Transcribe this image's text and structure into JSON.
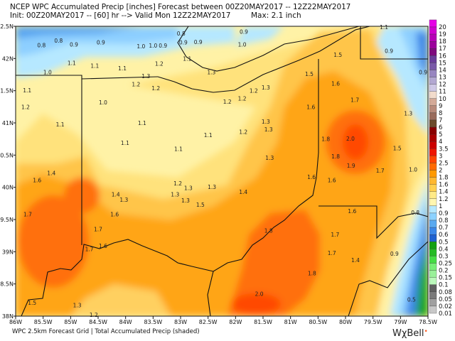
{
  "header": {
    "line1": "NCEP WPC Accumulated Precip [inches] Forecast between 00Z20MAY2017 -- 12Z22MAY2017",
    "line2": "Init: 00Z20MAY2017 -- [60] hr --> Valid Mon 12Z22MAY2017",
    "max": "Max: 2.1 inch"
  },
  "footer": {
    "caption": "WPC 2.5km Forecast Grid | Total Accumulated Precip (shaded)",
    "logo": "WχBell"
  },
  "axes": {
    "lat_labels": [
      "42.5N",
      "42N",
      "41.5N",
      "41N",
      "40.5N",
      "40N",
      "39.5N",
      "39N",
      "38.5N",
      "38N"
    ],
    "lon_labels": [
      "86W",
      "85.5W",
      "85W",
      "84.5W",
      "84W",
      "83.5W",
      "83W",
      "82.5W",
      "82W",
      "81.5W",
      "81W",
      "80.5W",
      "80W",
      "79.5W",
      "79W",
      "78.5W"
    ],
    "lat_range": [
      38,
      42.5
    ],
    "lon_range": [
      -86,
      -78.5
    ]
  },
  "colorbar": [
    {
      "label": "20",
      "color": "#e600e6"
    },
    {
      "label": "19",
      "color": "#cf00cf"
    },
    {
      "label": "18",
      "color": "#b600b6"
    },
    {
      "label": "17",
      "color": "#9c009c"
    },
    {
      "label": "16",
      "color": "#7e0a7e"
    },
    {
      "label": "15",
      "color": "#6a3d9a"
    },
    {
      "label": "14",
      "color": "#7a5aa8"
    },
    {
      "label": "13",
      "color": "#9886c0"
    },
    {
      "label": "12",
      "color": "#b3a8d2"
    },
    {
      "label": "11",
      "color": "#cfc8e6"
    },
    {
      "label": "10",
      "color": "#f2dccc"
    },
    {
      "label": "9",
      "color": "#d4aa98"
    },
    {
      "label": "8",
      "color": "#b88a7a"
    },
    {
      "label": "7",
      "color": "#9a6c5c"
    },
    {
      "label": "6",
      "color": "#6c4c2c"
    },
    {
      "label": "5",
      "color": "#8a0000"
    },
    {
      "label": "4",
      "color": "#aa0000"
    },
    {
      "label": "3.5",
      "color": "#cc0000"
    },
    {
      "label": "3",
      "color": "#ee1500"
    },
    {
      "label": "2.5",
      "color": "#ff4400"
    },
    {
      "label": "2",
      "color": "#ff6a00"
    },
    {
      "label": "1.8",
      "color": "#ff9a00"
    },
    {
      "label": "1.6",
      "color": "#ffb830"
    },
    {
      "label": "1.4",
      "color": "#ffd050"
    },
    {
      "label": "1.2",
      "color": "#ffea88"
    },
    {
      "label": "1",
      "color": "#fff6b0"
    },
    {
      "label": "0.9",
      "color": "#b4e8ff"
    },
    {
      "label": "0.8",
      "color": "#8cd2ff"
    },
    {
      "label": "0.7",
      "color": "#5aaaf0"
    },
    {
      "label": "0.6",
      "color": "#3c88e8"
    },
    {
      "label": "0.5",
      "color": "#2062d0"
    },
    {
      "label": "0.4",
      "color": "#12a012"
    },
    {
      "label": "0.3",
      "color": "#24bb24"
    },
    {
      "label": "0.25",
      "color": "#44dd44"
    },
    {
      "label": "0.2",
      "color": "#77ee77"
    },
    {
      "label": "0.15",
      "color": "#99f099"
    },
    {
      "label": "0.1",
      "color": "#bbf8bb"
    },
    {
      "label": "0.08",
      "color": "#606060"
    },
    {
      "label": "0.05",
      "color": "#7a7a7a"
    },
    {
      "label": "0.02",
      "color": "#a0a0a0"
    },
    {
      "label": "0.01",
      "color": "#c8c8c8"
    }
  ],
  "point_values": [
    {
      "v": "0.8",
      "lon": -85.53,
      "lat": 42.21
    },
    {
      "v": "0.8",
      "lon": -85.22,
      "lat": 42.28
    },
    {
      "v": "0.9",
      "lon": -84.94,
      "lat": 42.22
    },
    {
      "v": "0.9",
      "lon": -84.45,
      "lat": 42.25
    },
    {
      "v": "0.8",
      "lon": -82.99,
      "lat": 42.39
    },
    {
      "v": "0.9",
      "lon": -82.95,
      "lat": 42.25
    },
    {
      "v": "0.9",
      "lon": -82.68,
      "lat": 42.26
    },
    {
      "v": "1.0",
      "lon": -83.72,
      "lat": 42.19
    },
    {
      "v": "1.0",
      "lon": -83.5,
      "lat": 42.2
    },
    {
      "v": "0.9",
      "lon": -83.32,
      "lat": 42.2
    },
    {
      "v": "1.0",
      "lon": -85.42,
      "lat": 41.79
    },
    {
      "v": "1.1",
      "lon": -84.98,
      "lat": 41.93
    },
    {
      "v": "1.1",
      "lon": -84.56,
      "lat": 41.89
    },
    {
      "v": "1.1",
      "lon": -84.06,
      "lat": 41.85
    },
    {
      "v": "1.2",
      "lon": -83.39,
      "lat": 41.92
    },
    {
      "v": "1.1",
      "lon": -82.88,
      "lat": 42.0
    },
    {
      "v": "1.3",
      "lon": -82.44,
      "lat": 41.79
    },
    {
      "v": "1.3",
      "lon": -83.63,
      "lat": 41.73
    },
    {
      "v": "1.2",
      "lon": -83.81,
      "lat": 41.6
    },
    {
      "v": "1.2",
      "lon": -83.45,
      "lat": 41.54
    },
    {
      "v": "1.1",
      "lon": -85.79,
      "lat": 41.51
    },
    {
      "v": "1.2",
      "lon": -85.82,
      "lat": 41.25
    },
    {
      "v": "1.0",
      "lon": -84.41,
      "lat": 41.32
    },
    {
      "v": "1.1",
      "lon": -85.19,
      "lat": 40.98
    },
    {
      "v": "1.1",
      "lon": -83.7,
      "lat": 41.0
    },
    {
      "v": "1.1",
      "lon": -82.5,
      "lat": 40.81
    },
    {
      "v": "1.1",
      "lon": -84.01,
      "lat": 40.69
    },
    {
      "v": "1.1",
      "lon": -83.04,
      "lat": 40.6
    },
    {
      "v": "0.9",
      "lon": -81.85,
      "lat": 42.42
    },
    {
      "v": "1.0",
      "lon": -81.88,
      "lat": 42.22
    },
    {
      "v": "1.3",
      "lon": -81.45,
      "lat": 41.55
    },
    {
      "v": "1.2",
      "lon": -81.67,
      "lat": 41.5
    },
    {
      "v": "1.2",
      "lon": -82.15,
      "lat": 41.33
    },
    {
      "v": "1.2",
      "lon": -81.88,
      "lat": 41.38
    },
    {
      "v": "1.5",
      "lon": -80.66,
      "lat": 41.76
    },
    {
      "v": "1.6",
      "lon": -80.18,
      "lat": 41.61
    },
    {
      "v": "1.6",
      "lon": -80.63,
      "lat": 41.25
    },
    {
      "v": "1.7",
      "lon": -79.83,
      "lat": 41.36
    },
    {
      "v": "1.3",
      "lon": -81.45,
      "lat": 41.02
    },
    {
      "v": "1.3",
      "lon": -81.4,
      "lat": 40.9
    },
    {
      "v": "1.2",
      "lon": -81.86,
      "lat": 40.86
    },
    {
      "v": "1.3",
      "lon": -81.38,
      "lat": 40.46
    },
    {
      "v": "1.8",
      "lon": -80.36,
      "lat": 40.75
    },
    {
      "v": "2.0",
      "lon": -79.91,
      "lat": 40.76
    },
    {
      "v": "1.8",
      "lon": -80.18,
      "lat": 40.48
    },
    {
      "v": "1.9",
      "lon": -79.9,
      "lat": 40.34
    },
    {
      "v": "1.5",
      "lon": -79.06,
      "lat": 40.61
    },
    {
      "v": "1.3",
      "lon": -78.86,
      "lat": 41.15
    },
    {
      "v": "0.9",
      "lon": -79.21,
      "lat": 42.12
    },
    {
      "v": "0.9",
      "lon": -78.59,
      "lat": 41.79
    },
    {
      "v": "1.5",
      "lon": -80.14,
      "lat": 42.06
    },
    {
      "v": "1.1",
      "lon": -79.3,
      "lat": 42.49
    },
    {
      "v": "1.0",
      "lon": -78.77,
      "lat": 40.28
    },
    {
      "v": "1.7",
      "lon": -79.37,
      "lat": 40.26
    },
    {
      "v": "1.4",
      "lon": -85.35,
      "lat": 40.22
    },
    {
      "v": "1.6",
      "lon": -85.61,
      "lat": 40.11
    },
    {
      "v": "1.7",
      "lon": -85.78,
      "lat": 39.58
    },
    {
      "v": "1.4",
      "lon": -84.18,
      "lat": 39.89
    },
    {
      "v": "1.3",
      "lon": -84.03,
      "lat": 39.81
    },
    {
      "v": "1.6",
      "lon": -84.2,
      "lat": 39.58
    },
    {
      "v": "1.7",
      "lon": -84.5,
      "lat": 39.35
    },
    {
      "v": "1.6",
      "lon": -84.41,
      "lat": 39.09
    },
    {
      "v": "1.7",
      "lon": -84.66,
      "lat": 39.04
    },
    {
      "v": "1.2",
      "lon": -83.05,
      "lat": 40.06
    },
    {
      "v": "1.3",
      "lon": -82.86,
      "lat": 39.99
    },
    {
      "v": "1.3",
      "lon": -83.1,
      "lat": 39.89
    },
    {
      "v": "1.3",
      "lon": -82.91,
      "lat": 39.8
    },
    {
      "v": "1.3",
      "lon": -82.43,
      "lat": 40.01
    },
    {
      "v": "1.5",
      "lon": -82.64,
      "lat": 39.73
    },
    {
      "v": "1.5",
      "lon": -85.7,
      "lat": 38.21
    },
    {
      "v": "1.3",
      "lon": -84.88,
      "lat": 38.17
    },
    {
      "v": "1.2",
      "lon": -84.58,
      "lat": 38.02
    },
    {
      "v": "1.4",
      "lon": -81.86,
      "lat": 39.93
    },
    {
      "v": "1.6",
      "lon": -80.62,
      "lat": 40.16
    },
    {
      "v": "1.6",
      "lon": -80.25,
      "lat": 40.11
    },
    {
      "v": "1.6",
      "lon": -79.88,
      "lat": 39.63
    },
    {
      "v": "0.8",
      "lon": -78.73,
      "lat": 39.61
    },
    {
      "v": "1.8",
      "lon": -81.4,
      "lat": 39.33
    },
    {
      "v": "1.7",
      "lon": -80.19,
      "lat": 39.27
    },
    {
      "v": "1.7",
      "lon": -80.25,
      "lat": 38.98
    },
    {
      "v": "1.4",
      "lon": -79.82,
      "lat": 38.87
    },
    {
      "v": "0.9",
      "lon": -79.11,
      "lat": 38.97
    },
    {
      "v": "1.8",
      "lon": -80.61,
      "lat": 38.67
    },
    {
      "v": "2.0",
      "lon": -81.57,
      "lat": 38.35
    },
    {
      "v": "0.5",
      "lon": -78.8,
      "lat": 38.26
    }
  ]
}
